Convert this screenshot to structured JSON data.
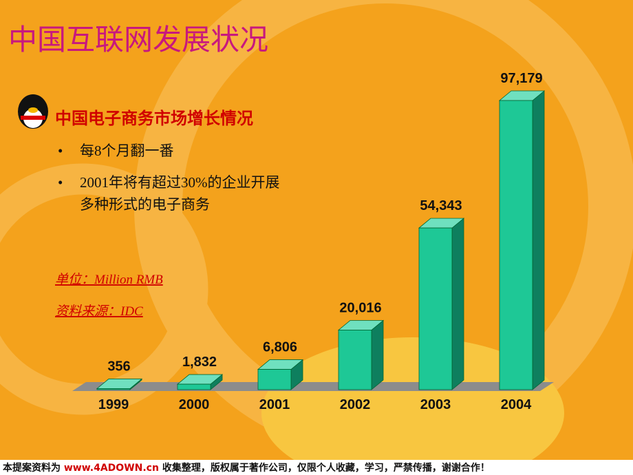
{
  "title": "中国互联网发展状况",
  "subtitle": "中国电子商务市场增长情况",
  "bullets": [
    "每8个月翻一番",
    "2001年将有超过30%的企业开展",
    "多种形式的电子商务"
  ],
  "unit": "单位：Million RMB",
  "source": "资料来源：IDC",
  "footer": {
    "before": "本提案资料为 ",
    "url": "www.4ADOWN.cn",
    "after": " 收集整理，版权属于著作公司，仅限个人收藏，学习，严禁传播，谢谢合作！"
  },
  "chart_data": {
    "type": "bar3d",
    "categories": [
      "1999",
      "2000",
      "2001",
      "2002",
      "2003",
      "2004"
    ],
    "values": [
      356,
      1832,
      6806,
      20016,
      54343,
      97179
    ],
    "value_labels": [
      "356",
      "1,832",
      "6,806",
      "20,016",
      "54,343",
      "97,179"
    ],
    "color": "#1ec896"
  }
}
